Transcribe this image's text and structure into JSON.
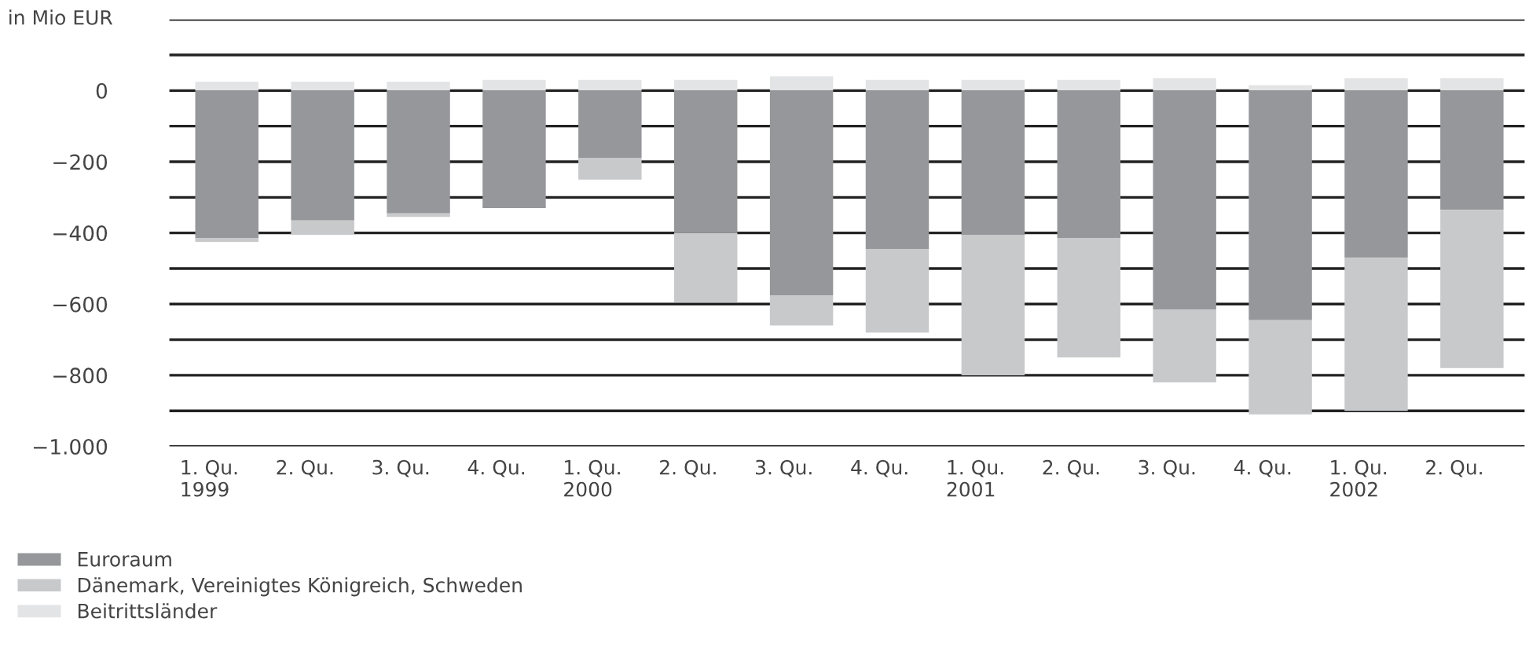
{
  "chart_data": {
    "type": "bar",
    "stacked": true,
    "ylabel": "in Mio EUR",
    "categories": [
      "1. Qu.\n1999",
      "2. Qu.",
      "3. Qu.",
      "4. Qu.",
      "1. Qu.\n2000",
      "2. Qu.",
      "3. Qu.",
      "4. Qu.",
      "1. Qu.\n2001",
      "2. Qu.",
      "3. Qu.",
      "4. Qu.",
      "1. Qu.\n2002",
      "2. Qu."
    ],
    "series": [
      {
        "name": "Euroraum",
        "color": "#96979a",
        "values": [
          -415,
          -365,
          -345,
          -330,
          -190,
          -400,
          -575,
          -445,
          -405,
          -415,
          -615,
          -645,
          -470,
          -335
        ]
      },
      {
        "name": "Dänemark, Vereinigtes Königreich, Schweden",
        "color": "#c8c9cb",
        "values": [
          -10,
          -40,
          -10,
          0,
          -60,
          -195,
          -85,
          -235,
          -395,
          -335,
          -205,
          -265,
          -430,
          -445
        ]
      },
      {
        "name": "Beitrittsländer",
        "color": "#e3e4e5",
        "values": [
          25,
          25,
          25,
          30,
          30,
          30,
          40,
          30,
          30,
          30,
          35,
          15,
          35,
          35
        ]
      }
    ],
    "ylim": [
      -1000,
      200
    ],
    "yticks": [
      {
        "value": -1000,
        "label": "−1.000"
      },
      {
        "value": -900,
        "label": null
      },
      {
        "value": -800,
        "label": "−800"
      },
      {
        "value": -700,
        "label": null
      },
      {
        "value": -600,
        "label": "−600"
      },
      {
        "value": -500,
        "label": null
      },
      {
        "value": -400,
        "label": "−400"
      },
      {
        "value": -300,
        "label": null
      },
      {
        "value": -200,
        "label": "−200"
      },
      {
        "value": -100,
        "label": null
      },
      0,
      {
        "value": 100,
        "label": null
      },
      {
        "value": 200,
        "label": null
      }
    ],
    "grid": "y",
    "legend": "bottom left"
  }
}
